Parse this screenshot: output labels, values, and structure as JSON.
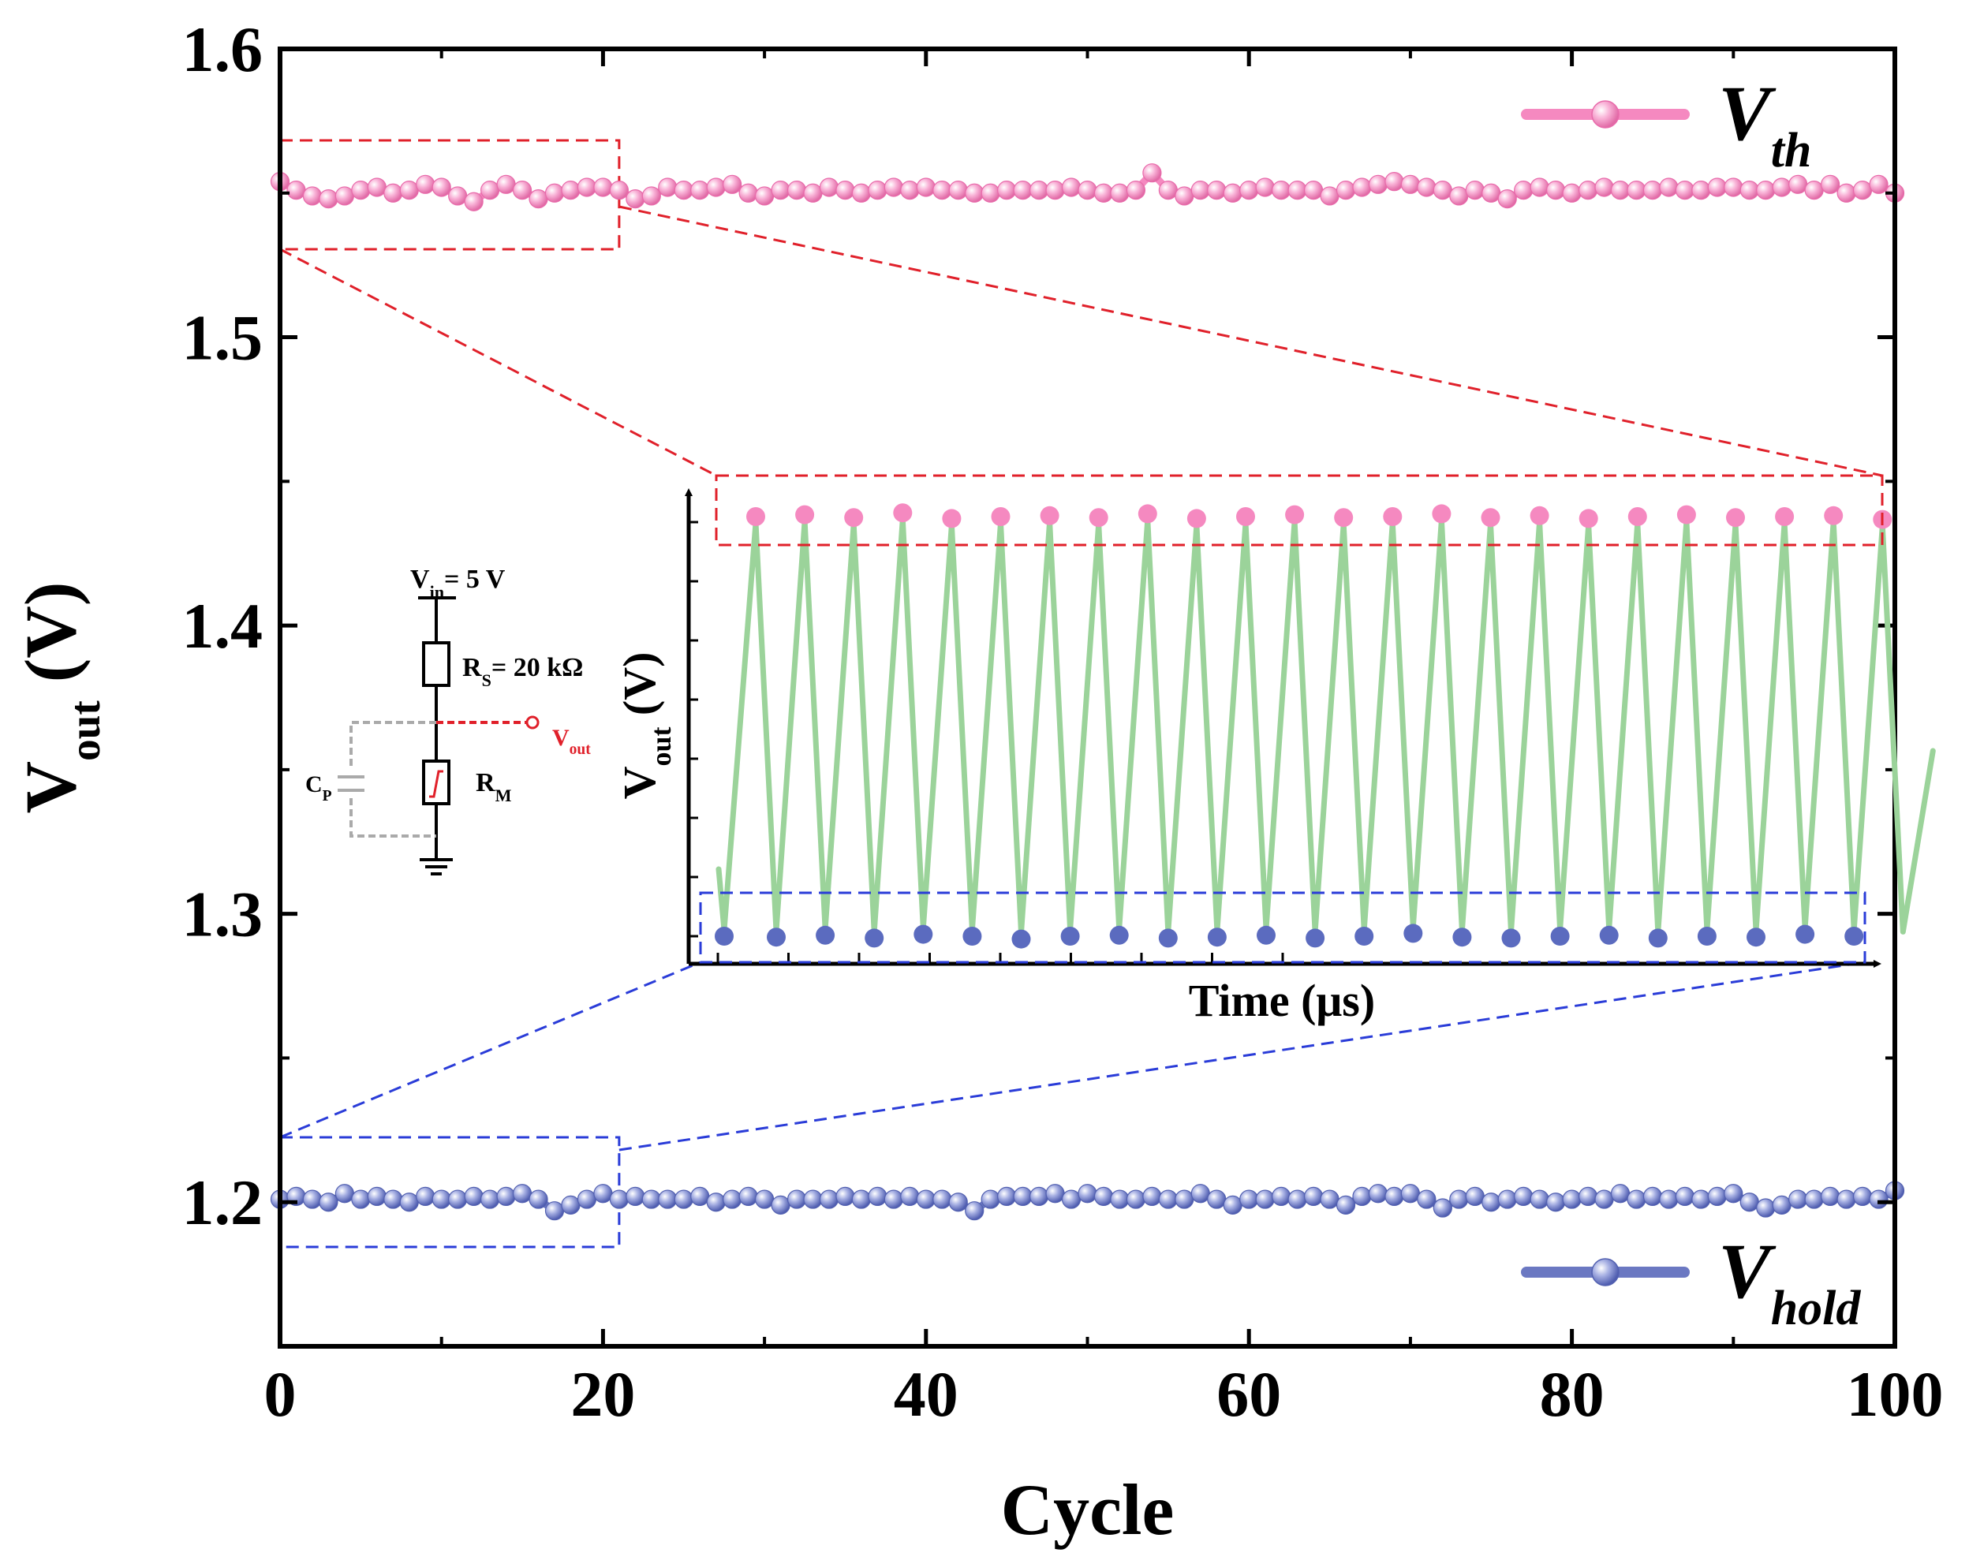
{
  "chart_data": {
    "type": "line",
    "xlabel": "Cycle",
    "ylabel": {
      "main": "V",
      "sub": "out",
      "unit": " (V)"
    },
    "xlim": [
      0,
      100
    ],
    "ylim": [
      1.15,
      1.6
    ],
    "xticks": [
      0,
      20,
      40,
      60,
      80,
      100
    ],
    "yticks": [
      1.2,
      1.3,
      1.4,
      1.5,
      1.6
    ],
    "xtick_labels": [
      "0",
      "20",
      "40",
      "60",
      "80",
      "100"
    ],
    "ytick_labels": [
      "1.2",
      "1.3",
      "1.4",
      "1.5",
      "1.6"
    ],
    "series": [
      {
        "name_main": "V",
        "name_sub": "th",
        "color": "#f589c0",
        "edge": "#e86aaa",
        "legend_position": "top-right",
        "base": 1.551,
        "values": [
          1.554,
          1.551,
          1.549,
          1.548,
          1.549,
          1.551,
          1.552,
          1.55,
          1.551,
          1.553,
          1.552,
          1.549,
          1.547,
          1.551,
          1.553,
          1.551,
          1.548,
          1.55,
          1.551,
          1.552,
          1.552,
          1.551,
          1.548,
          1.549,
          1.552,
          1.551,
          1.551,
          1.552,
          1.553,
          1.55,
          1.549,
          1.551,
          1.551,
          1.55,
          1.552,
          1.551,
          1.55,
          1.551,
          1.552,
          1.551,
          1.552,
          1.551,
          1.551,
          1.55,
          1.55,
          1.551,
          1.551,
          1.551,
          1.551,
          1.552,
          1.551,
          1.55,
          1.55,
          1.551,
          1.557,
          1.551,
          1.549,
          1.551,
          1.551,
          1.55,
          1.551,
          1.552,
          1.551,
          1.551,
          1.551,
          1.549,
          1.551,
          1.552,
          1.553,
          1.554,
          1.553,
          1.552,
          1.551,
          1.549,
          1.551,
          1.55,
          1.548,
          1.551,
          1.552,
          1.551,
          1.55,
          1.551,
          1.552,
          1.551,
          1.551,
          1.551,
          1.552,
          1.551,
          1.551,
          1.552,
          1.552,
          1.551,
          1.551,
          1.552,
          1.553,
          1.551,
          1.553,
          1.55,
          1.551,
          1.553,
          1.55
        ]
      },
      {
        "name_main": "V",
        "name_sub": "hold",
        "color": "#6b78c2",
        "edge": "#5260b0",
        "legend_position": "bottom-right",
        "base": 1.201,
        "values": [
          1.201,
          1.202,
          1.201,
          1.2,
          1.203,
          1.201,
          1.202,
          1.201,
          1.2,
          1.202,
          1.201,
          1.201,
          1.202,
          1.201,
          1.202,
          1.203,
          1.201,
          1.197,
          1.199,
          1.201,
          1.203,
          1.201,
          1.202,
          1.201,
          1.201,
          1.201,
          1.202,
          1.2,
          1.201,
          1.202,
          1.201,
          1.199,
          1.201,
          1.201,
          1.201,
          1.202,
          1.201,
          1.202,
          1.201,
          1.202,
          1.201,
          1.201,
          1.2,
          1.197,
          1.201,
          1.202,
          1.202,
          1.202,
          1.203,
          1.201,
          1.203,
          1.202,
          1.201,
          1.201,
          1.202,
          1.201,
          1.201,
          1.203,
          1.201,
          1.199,
          1.201,
          1.201,
          1.202,
          1.201,
          1.202,
          1.201,
          1.199,
          1.202,
          1.203,
          1.202,
          1.203,
          1.201,
          1.198,
          1.201,
          1.202,
          1.2,
          1.201,
          1.202,
          1.201,
          1.2,
          1.201,
          1.202,
          1.201,
          1.203,
          1.201,
          1.202,
          1.201,
          1.202,
          1.201,
          1.202,
          1.203,
          1.2,
          1.198,
          1.199,
          1.201,
          1.201,
          1.202,
          1.201,
          1.202,
          1.201,
          1.204
        ]
      }
    ],
    "inset": {
      "type": "line",
      "xlabel": "Time (μs)",
      "ylabel": {
        "main": "V",
        "sub": "out",
        "unit": " (V)"
      },
      "peaks_n": 24,
      "line_color": "#9bd39a",
      "peak_color": "#f589c0",
      "valley_color": "#5b6bbf",
      "peak_levels": [
        0.0,
        -0.2,
        0.1,
        -0.4,
        0.2,
        0.0,
        -0.1,
        0.1,
        -0.3,
        0.2,
        0.0,
        -0.2,
        0.1,
        0.0,
        -0.3,
        0.1,
        -0.1,
        0.2,
        0.0,
        -0.2,
        0.1,
        0.0,
        -0.1,
        0.3
      ],
      "valley_levels": [
        0.1,
        -0.1,
        0.2,
        -0.2,
        0.0,
        0.3,
        0.0,
        -0.1,
        0.2,
        0.1,
        -0.1,
        0.2,
        0.0,
        -0.3,
        0.1,
        0.2,
        0.0,
        -0.1,
        0.2,
        0.0,
        0.1,
        -0.2,
        0.0,
        0.2
      ]
    },
    "circuit": {
      "vin": "V",
      "vin_sub": "in",
      "vin_val": "= 5 V",
      "rs": "R",
      "rs_sub": "S",
      "rs_val": "= 20 kΩ",
      "vout": "V",
      "vout_sub": "out",
      "cp": "C",
      "cp_sub": "P",
      "rm": "R",
      "rm_sub": "M"
    }
  }
}
